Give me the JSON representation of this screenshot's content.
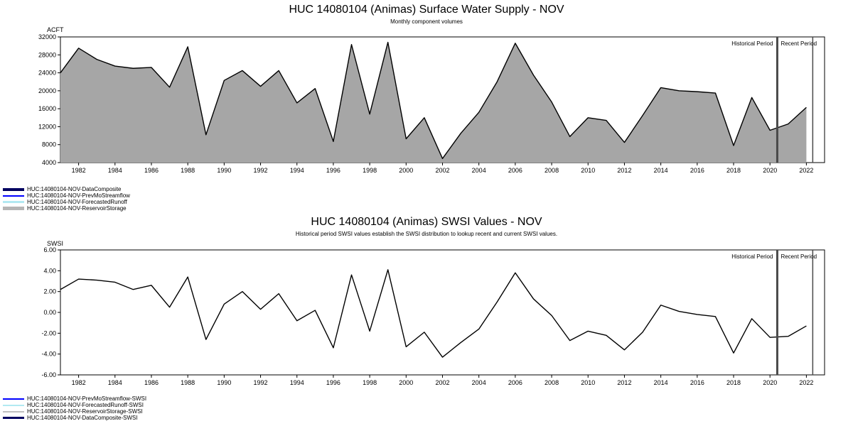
{
  "chart_data": [
    {
      "type": "area",
      "title": "HUC 14080104 (Animas) Surface Water Supply - NOV",
      "subtitle": "Monthly component volumes",
      "ylabel": "ACFT",
      "series_name": "HUC:14080104-NOV-DataComposite",
      "xlim": [
        1981,
        2023
      ],
      "ylim": [
        4000,
        32000
      ],
      "ytick_values": [
        4000,
        8000,
        12000,
        16000,
        20000,
        24000,
        28000,
        32000
      ],
      "ytick_labels": [
        "4000",
        "8000",
        "12000",
        "16000",
        "20000",
        "24000",
        "28000",
        "32000"
      ],
      "xticks": [
        1982,
        1984,
        1986,
        1988,
        1990,
        1992,
        1994,
        1996,
        1998,
        2000,
        2002,
        2004,
        2006,
        2008,
        2010,
        2012,
        2014,
        2016,
        2018,
        2020,
        2022
      ],
      "x": [
        1981,
        1982,
        1983,
        1984,
        1985,
        1986,
        1987,
        1988,
        1989,
        1990,
        1991,
        1992,
        1993,
        1994,
        1995,
        1996,
        1997,
        1998,
        1999,
        2000,
        2001,
        2002,
        2003,
        2004,
        2005,
        2006,
        2007,
        2008,
        2009,
        2010,
        2011,
        2012,
        2013,
        2014,
        2015,
        2016,
        2017,
        2018,
        2019,
        2020,
        2021,
        2022
      ],
      "values": [
        24000,
        29500,
        27000,
        25500,
        25000,
        25200,
        20800,
        29800,
        10200,
        22300,
        24500,
        21000,
        24500,
        17300,
        20500,
        8700,
        30300,
        14800,
        30800,
        9300,
        14000,
        4900,
        10500,
        15200,
        22000,
        30600,
        23500,
        17500,
        9800,
        14000,
        13400,
        8500,
        14500,
        20700,
        20000,
        19800,
        19500,
        7800,
        18500,
        11200,
        12600,
        16300
      ],
      "fill_color": "#a6a6a6",
      "line_color": "#000000",
      "dividers": [
        2020.4,
        2022.35
      ],
      "divider_color": "#4a4a4a",
      "annotations": {
        "historical": "Historical Period",
        "recent": "Recent Period"
      },
      "legend": [
        {
          "label": "HUC:14080104-NOV-DataComposite",
          "color": "#000060",
          "thickness": 4
        },
        {
          "label": "HUC:14080104-NOV-PrevMoStreamflow",
          "color": "#0000ff",
          "thickness": 2
        },
        {
          "label": "HUC:14080104-NOV-ForecastedRunoff",
          "color": "#b2e9f2",
          "thickness": 3
        },
        {
          "label": "HUC:14080104-NOV-ReservoirStorage",
          "color": "#b5b5b5",
          "thickness": 5
        }
      ]
    },
    {
      "type": "line",
      "title": "HUC 14080104 (Animas) SWSI Values - NOV",
      "subtitle": "Historical period SWSI values establish the SWSI distribution to lookup recent and current SWSI values.",
      "ylabel": "SWSI",
      "series_name": "HUC:14080104-NOV-DataComposite-SWSI",
      "xlim": [
        1981,
        2023
      ],
      "ylim": [
        -6,
        6
      ],
      "ytick_values": [
        -6,
        -4,
        -2,
        0,
        2,
        4,
        6
      ],
      "ytick_labels": [
        "-6.00",
        "-4.00",
        "-2.00",
        "0.00",
        "2.00",
        "4.00",
        "6.00"
      ],
      "xticks": [
        1982,
        1984,
        1986,
        1988,
        1990,
        1992,
        1994,
        1996,
        1998,
        2000,
        2002,
        2004,
        2006,
        2008,
        2010,
        2012,
        2014,
        2016,
        2018,
        2020,
        2022
      ],
      "x": [
        1981,
        1982,
        1983,
        1984,
        1985,
        1986,
        1987,
        1988,
        1989,
        1990,
        1991,
        1992,
        1993,
        1994,
        1995,
        1996,
        1997,
        1998,
        1999,
        2000,
        2001,
        2002,
        2003,
        2004,
        2005,
        2006,
        2007,
        2008,
        2009,
        2010,
        2011,
        2012,
        2013,
        2014,
        2015,
        2016,
        2017,
        2018,
        2019,
        2020,
        2021,
        2022
      ],
      "values": [
        2.2,
        3.2,
        3.1,
        2.9,
        2.2,
        2.6,
        0.5,
        3.4,
        -2.6,
        0.8,
        2.0,
        0.3,
        1.8,
        -0.8,
        0.2,
        -3.4,
        3.6,
        -1.8,
        4.1,
        -3.3,
        -1.9,
        -4.3,
        -2.9,
        -1.6,
        1.0,
        3.8,
        1.3,
        -0.3,
        -2.7,
        -1.8,
        -2.2,
        -3.6,
        -1.9,
        0.7,
        0.1,
        -0.2,
        -0.4,
        -3.9,
        -0.6,
        -2.4,
        -2.3,
        -1.3
      ],
      "fill_color": "none",
      "line_color": "#000000",
      "dividers": [
        2020.4,
        2022.35
      ],
      "divider_color": "#4a4a4a",
      "annotations": {
        "historical": "Historical Period",
        "recent": "Recent Period"
      },
      "legend": [
        {
          "label": "HUC:14080104-NOV-PrevMoStreamflow-SWSI",
          "color": "#0000ff",
          "thickness": 2
        },
        {
          "label": "HUC:14080104-NOV-ForecastedRunoff-SWSI",
          "color": "#b2e9f2",
          "thickness": 2
        },
        {
          "label": "HUC:14080104-NOV-ReservoirStorage-SWSI",
          "color": "#c0c0c0",
          "thickness": 2
        },
        {
          "label": "HUC:14080104-NOV-DataComposite-SWSI",
          "color": "#000060",
          "thickness": 3
        }
      ]
    }
  ]
}
